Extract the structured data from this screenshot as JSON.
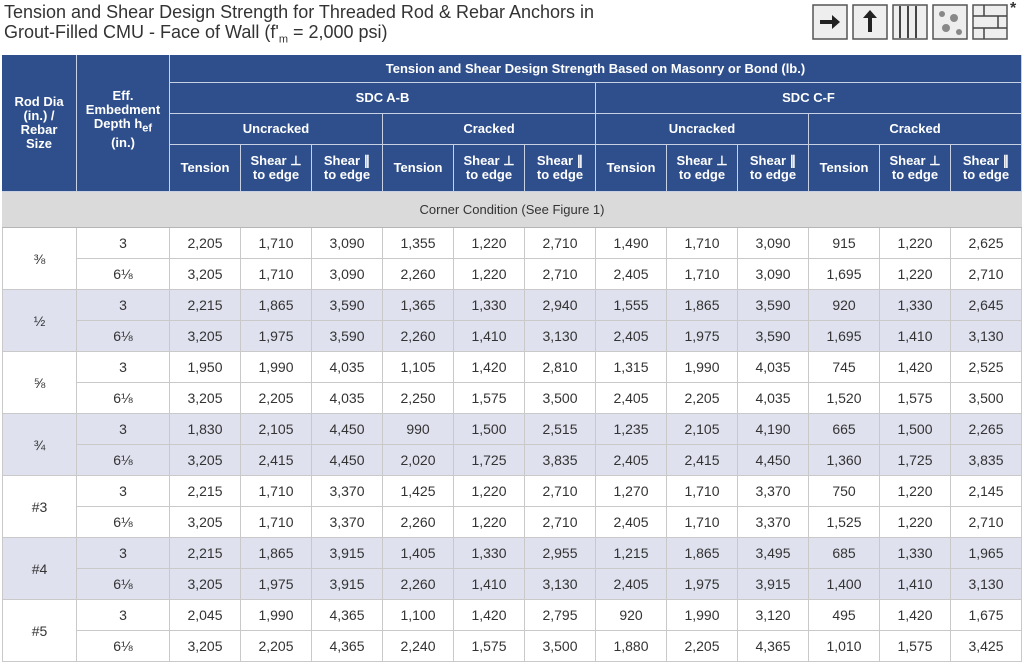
{
  "title": {
    "line1": "Tension and Shear Design Strength for Threaded Rod & Rebar Anchors in",
    "line2_a": "Grout-Filled CMU - Face of Wall (f'",
    "line2_sub": "m",
    "line2_b": " = 2,000 psi)"
  },
  "asterisk": "*",
  "table": {
    "col0": "Rod Dia\n(in.) /\nRebar\nSize",
    "col1_a": "Eff.\nEmbedment\nDepth h",
    "col1_sub": "ef",
    "col1_b": "\n(in.)",
    "top": "Tension and Shear Design Strength Based on Masonry or Bond (lb.)",
    "groups": [
      {
        "name": "SDC A-B",
        "subs": [
          {
            "name": "Uncracked",
            "cols": [
              "Tension",
              "Shear ⊥\nto edge",
              "Shear ∥\nto edge"
            ]
          },
          {
            "name": "Cracked",
            "cols": [
              "Tension",
              "Shear ⊥\nto edge",
              "Shear ∥\nto edge"
            ]
          }
        ]
      },
      {
        "name": "SDC C-F",
        "subs": [
          {
            "name": "Uncracked",
            "cols": [
              "Tension",
              "Shear ⊥\nto edge",
              "Shear ∥\nto edge"
            ]
          },
          {
            "name": "Cracked",
            "cols": [
              "Tension",
              "Shear ⊥\nto edge",
              "Shear ∥\nto edge"
            ]
          }
        ]
      }
    ],
    "section": "Corner Condition (See Figure 1)",
    "sizes": [
      {
        "size": "⅜",
        "rows": [
          {
            "depth": "3",
            "values": [
              "2,205",
              "1,710",
              "3,090",
              "1,355",
              "1,220",
              "2,710",
              "1,490",
              "1,710",
              "3,090",
              "915",
              "1,220",
              "2,625"
            ]
          },
          {
            "depth": "6⅛",
            "values": [
              "3,205",
              "1,710",
              "3,090",
              "2,260",
              "1,220",
              "2,710",
              "2,405",
              "1,710",
              "3,090",
              "1,695",
              "1,220",
              "2,710"
            ]
          }
        ]
      },
      {
        "size": "½",
        "rows": [
          {
            "depth": "3",
            "values": [
              "2,215",
              "1,865",
              "3,590",
              "1,365",
              "1,330",
              "2,940",
              "1,555",
              "1,865",
              "3,590",
              "920",
              "1,330",
              "2,645"
            ]
          },
          {
            "depth": "6⅛",
            "values": [
              "3,205",
              "1,975",
              "3,590",
              "2,260",
              "1,410",
              "3,130",
              "2,405",
              "1,975",
              "3,590",
              "1,695",
              "1,410",
              "3,130"
            ]
          }
        ]
      },
      {
        "size": "⅝",
        "rows": [
          {
            "depth": "3",
            "values": [
              "1,950",
              "1,990",
              "4,035",
              "1,105",
              "1,420",
              "2,810",
              "1,315",
              "1,990",
              "4,035",
              "745",
              "1,420",
              "2,525"
            ]
          },
          {
            "depth": "6⅛",
            "values": [
              "3,205",
              "2,205",
              "4,035",
              "2,250",
              "1,575",
              "3,500",
              "2,405",
              "2,205",
              "4,035",
              "1,520",
              "1,575",
              "3,500"
            ]
          }
        ]
      },
      {
        "size": "¾",
        "rows": [
          {
            "depth": "3",
            "values": [
              "1,830",
              "2,105",
              "4,450",
              "990",
              "1,500",
              "2,515",
              "1,235",
              "2,105",
              "4,190",
              "665",
              "1,500",
              "2,265"
            ]
          },
          {
            "depth": "6⅛",
            "values": [
              "3,205",
              "2,415",
              "4,450",
              "2,020",
              "1,725",
              "3,835",
              "2,405",
              "2,415",
              "4,450",
              "1,360",
              "1,725",
              "3,835"
            ]
          }
        ]
      },
      {
        "size": "#3",
        "rows": [
          {
            "depth": "3",
            "values": [
              "2,215",
              "1,710",
              "3,370",
              "1,425",
              "1,220",
              "2,710",
              "1,270",
              "1,710",
              "3,370",
              "750",
              "1,220",
              "2,145"
            ]
          },
          {
            "depth": "6⅛",
            "values": [
              "3,205",
              "1,710",
              "3,370",
              "2,260",
              "1,220",
              "2,710",
              "2,405",
              "1,710",
              "3,370",
              "1,525",
              "1,220",
              "2,710"
            ]
          }
        ]
      },
      {
        "size": "#4",
        "rows": [
          {
            "depth": "3",
            "values": [
              "2,215",
              "1,865",
              "3,915",
              "1,405",
              "1,330",
              "2,955",
              "1,215",
              "1,865",
              "3,495",
              "685",
              "1,330",
              "1,965"
            ]
          },
          {
            "depth": "6⅛",
            "values": [
              "3,205",
              "1,975",
              "3,915",
              "2,260",
              "1,410",
              "3,130",
              "2,405",
              "1,975",
              "3,915",
              "1,400",
              "1,410",
              "3,130"
            ]
          }
        ]
      },
      {
        "size": "#5",
        "rows": [
          {
            "depth": "3",
            "values": [
              "2,045",
              "1,990",
              "4,365",
              "1,100",
              "1,420",
              "2,795",
              "920",
              "1,990",
              "3,120",
              "495",
              "1,420",
              "1,675"
            ]
          },
          {
            "depth": "6⅛",
            "values": [
              "3,205",
              "2,205",
              "4,365",
              "2,240",
              "1,575",
              "3,500",
              "1,880",
              "2,205",
              "4,365",
              "1,010",
              "1,575",
              "3,425"
            ]
          }
        ]
      }
    ]
  }
}
